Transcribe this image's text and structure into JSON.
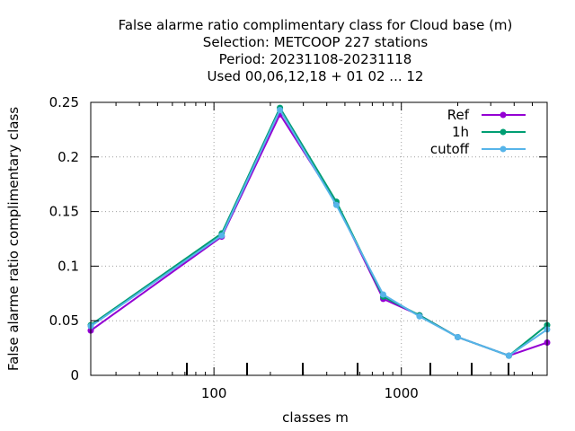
{
  "chart_data": {
    "type": "line",
    "title_lines": [
      "False alarme ratio complimentary class  for Cloud base (m)",
      "Selection: METCOOP    227 stations",
      "Period: 20231108-20231118",
      "Used  00,06,12,18 + 01 02 ... 12"
    ],
    "xlabel": "classes m",
    "ylabel": "False alarme ratio complimentary class",
    "x_scale": "log",
    "xlim": [
      22,
      6000
    ],
    "ylim": [
      0,
      0.25
    ],
    "x_tick_labels": [
      "100",
      "1000"
    ],
    "x_ticks": [
      100,
      1000
    ],
    "y_tick_labels": [
      "0",
      "0.05",
      "0.1",
      "0.15",
      "0.2",
      "0.25"
    ],
    "y_ticks": [
      0,
      0.05,
      0.1,
      0.15,
      0.2,
      0.25
    ],
    "grid": true,
    "legend_position": "top-right",
    "x": [
      22,
      110,
      225,
      450,
      800,
      1250,
      2000,
      3750,
      6000
    ],
    "series": [
      {
        "name": "Ref",
        "color": "#9400d3",
        "values": [
          0.041,
          0.127,
          0.239,
          0.158,
          0.07,
          0.055,
          0.035,
          0.018,
          0.03
        ]
      },
      {
        "name": "1h",
        "color": "#009e73",
        "values": [
          0.046,
          0.13,
          0.245,
          0.159,
          0.072,
          0.055,
          0.035,
          0.018,
          0.046
        ]
      },
      {
        "name": "cutoff",
        "color": "#56b4e9",
        "values": [
          0.045,
          0.128,
          0.243,
          0.156,
          0.074,
          0.054,
          0.035,
          0.018,
          0.042
        ]
      }
    ]
  }
}
